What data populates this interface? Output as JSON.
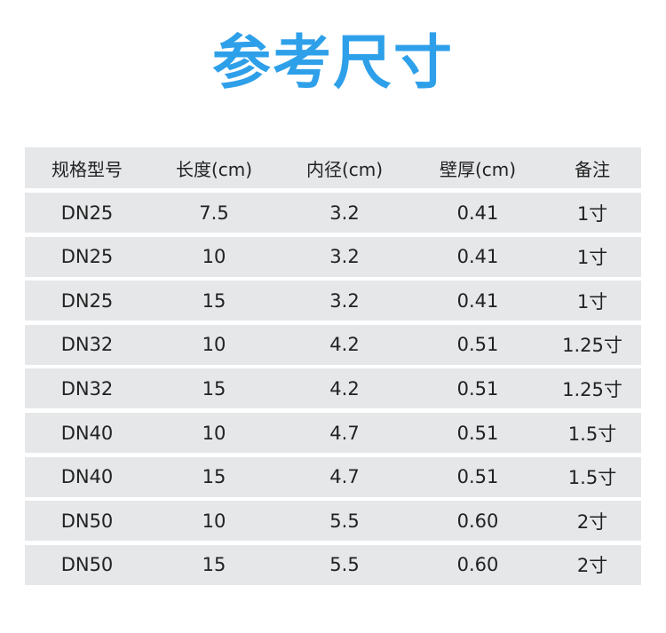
{
  "title": "参考尺寸",
  "colors": {
    "title": "#2ea0ea",
    "row_bg": "#e5e7e9"
  },
  "table": {
    "headers": [
      "规格型号",
      "长度(cm)",
      "内径(cm)",
      "壁厚(cm)",
      "备注"
    ],
    "rows": [
      [
        "DN25",
        "7.5",
        "3.2",
        "0.41",
        "1寸"
      ],
      [
        "DN25",
        "10",
        "3.2",
        "0.41",
        "1寸"
      ],
      [
        "DN25",
        "15",
        "3.2",
        "0.41",
        "1寸"
      ],
      [
        "DN32",
        "10",
        "4.2",
        "0.51",
        "1.25寸"
      ],
      [
        "DN32",
        "15",
        "4.2",
        "0.51",
        "1.25寸"
      ],
      [
        "DN40",
        "10",
        "4.7",
        "0.51",
        "1.5寸"
      ],
      [
        "DN40",
        "15",
        "4.7",
        "0.51",
        "1.5寸"
      ],
      [
        "DN50",
        "10",
        "5.5",
        "0.60",
        "2寸"
      ],
      [
        "DN50",
        "15",
        "5.5",
        "0.60",
        "2寸"
      ]
    ]
  }
}
